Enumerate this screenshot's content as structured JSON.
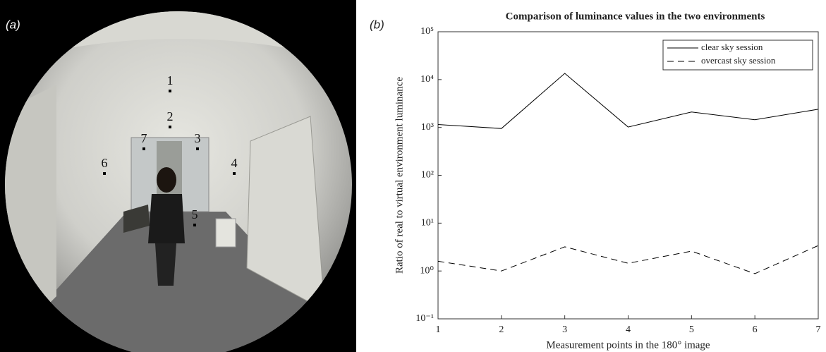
{
  "panel_labels": [
    "(a)",
    "(b)"
  ],
  "photo": {
    "points": [
      "1",
      "2",
      "3",
      "4",
      "5",
      "6",
      "7"
    ]
  },
  "chart_data": {
    "type": "line",
    "title": "Comparison of luminance values in the two environments",
    "x_label": "Measurement points in the 180° image",
    "y_label": "Ratio of real to virtual environment luminance",
    "x": [
      1,
      2,
      3,
      4,
      5,
      6,
      7
    ],
    "series": [
      {
        "name": "clear sky session",
        "color": "#000000",
        "linestyle": "solid",
        "values": [
          1150,
          950,
          13500,
          1020,
          2100,
          1450,
          2400
        ]
      },
      {
        "name": "overcast sky session",
        "color": "#000000",
        "linestyle": "dashed",
        "values": [
          1.6,
          1.0,
          3.2,
          1.45,
          2.6,
          0.88,
          3.4
        ]
      }
    ],
    "xlim": [
      1,
      7
    ],
    "xticks": [
      1,
      2,
      3,
      4,
      5,
      6,
      7
    ],
    "ylim": [
      0.1,
      100000
    ],
    "yticks": [
      {
        "value": 0.1,
        "label": "10⁻¹"
      },
      {
        "value": 1,
        "label": "10⁰"
      },
      {
        "value": 10,
        "label": "10¹"
      },
      {
        "value": 100,
        "label": "10²"
      },
      {
        "value": 1000,
        "label": "10³"
      },
      {
        "value": 10000,
        "label": "10⁴"
      },
      {
        "value": 100000,
        "label": "10⁵"
      }
    ],
    "log_y": true,
    "grid": false,
    "legend": "upper right"
  }
}
